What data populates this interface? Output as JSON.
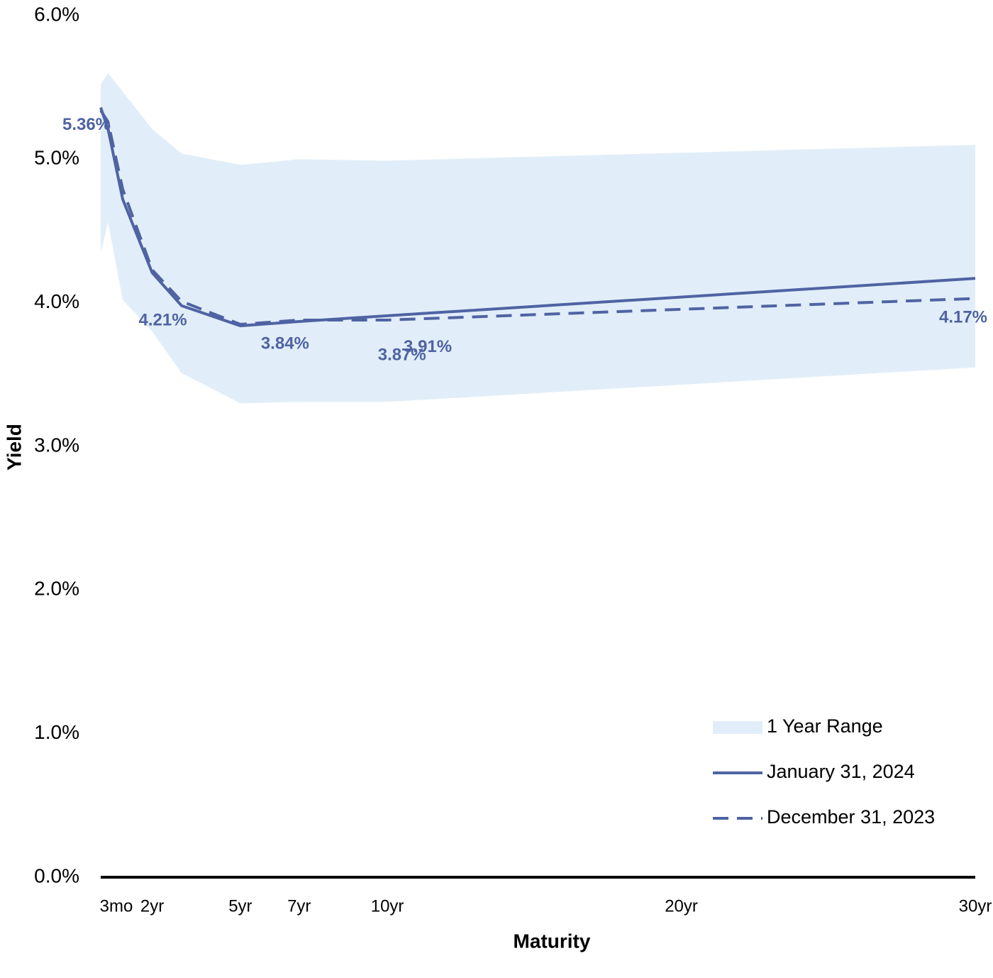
{
  "chart_data": {
    "type": "line",
    "x_label": "Maturity",
    "y_label": "Yield",
    "x": [
      0.25,
      0.5,
      1,
      2,
      3,
      5,
      7,
      10,
      30
    ],
    "xlim": [
      0.25,
      30
    ],
    "xticks": [
      {
        "value": 0.25,
        "label": "3mo"
      },
      {
        "value": 2,
        "label": "2yr"
      },
      {
        "value": 5,
        "label": "5yr"
      },
      {
        "value": 7,
        "label": "7yr"
      },
      {
        "value": 10,
        "label": "10yr"
      },
      {
        "value": 20,
        "label": "20yr"
      },
      {
        "value": 30,
        "label": "30yr"
      }
    ],
    "ylim": [
      0,
      6
    ],
    "yticks": [
      {
        "value": 0,
        "label": "0.0%"
      },
      {
        "value": 1,
        "label": "1.0%"
      },
      {
        "value": 2,
        "label": "2.0%"
      },
      {
        "value": 3,
        "label": "3.0%"
      },
      {
        "value": 4,
        "label": "4.0%"
      },
      {
        "value": 5,
        "label": "5.0%"
      },
      {
        "value": 6,
        "label": "6.0%"
      }
    ],
    "band": {
      "name": "1 Year Range",
      "color": "#e1eef9",
      "low": [
        4.35,
        4.56,
        4.02,
        3.8,
        3.51,
        3.3,
        3.31,
        3.31,
        3.55
      ],
      "high": [
        5.52,
        5.6,
        5.47,
        5.21,
        5.04,
        4.96,
        5.0,
        4.99,
        5.1
      ]
    },
    "series": [
      {
        "name": "January 31, 2024",
        "color": "#4f63a3",
        "dash": false,
        "values": [
          5.36,
          5.21,
          4.72,
          4.21,
          3.98,
          3.84,
          3.87,
          3.91,
          4.17
        ],
        "value_labels": [
          "5.36%",
          null,
          null,
          "4.21%",
          null,
          "3.84%",
          "3.87%",
          "3.91%",
          "4.17%"
        ]
      },
      {
        "name": "December 31, 2023",
        "color": "#4f63a3",
        "dash": true,
        "values": [
          5.34,
          5.26,
          4.79,
          4.23,
          4.01,
          3.85,
          3.88,
          3.88,
          4.03
        ]
      }
    ],
    "legend": "lower-right"
  }
}
